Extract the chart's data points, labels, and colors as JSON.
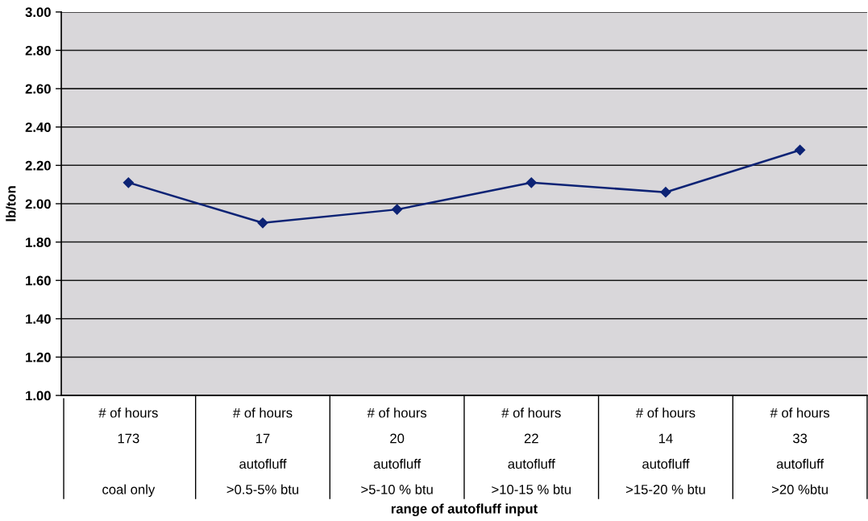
{
  "chart_data": {
    "type": "line",
    "xlabel": "range of autofluff input",
    "ylabel": "lb/ton",
    "categories": [
      "# of hours\n173\n\ncoal only",
      "# of hours\n17\nautofluff\n>0.5-5% btu",
      "# of hours\n20\nautofluff\n>5-10 % btu",
      "# of hours\n22\nautofluff\n>10-15 % btu",
      "# of hours\n14\nautofluff\n>15-20 % btu",
      "# of hours\n33\nautofluff\n>20 %btu"
    ],
    "values": [
      2.11,
      1.9,
      1.97,
      2.11,
      2.06,
      2.28
    ],
    "color": "#0d2375",
    "marker": "diamond",
    "line_style": "solid",
    "ylim": [
      1,
      3
    ],
    "yticks": [
      {
        "value": 1,
        "label": "1.00"
      },
      {
        "value": 1.2,
        "label": "1.20"
      },
      {
        "value": 1.4,
        "label": "1.40"
      },
      {
        "value": 1.6,
        "label": "1.60"
      },
      {
        "value": 1.8,
        "label": "1.80"
      },
      {
        "value": 2,
        "label": "2.00"
      },
      {
        "value": 2.2,
        "label": "2.20"
      },
      {
        "value": 2.4,
        "label": "2.40"
      },
      {
        "value": 2.6,
        "label": "2.60"
      },
      {
        "value": 2.8,
        "label": "2.80"
      },
      {
        "value": 3,
        "label": "3.00"
      }
    ],
    "grid": "y"
  }
}
